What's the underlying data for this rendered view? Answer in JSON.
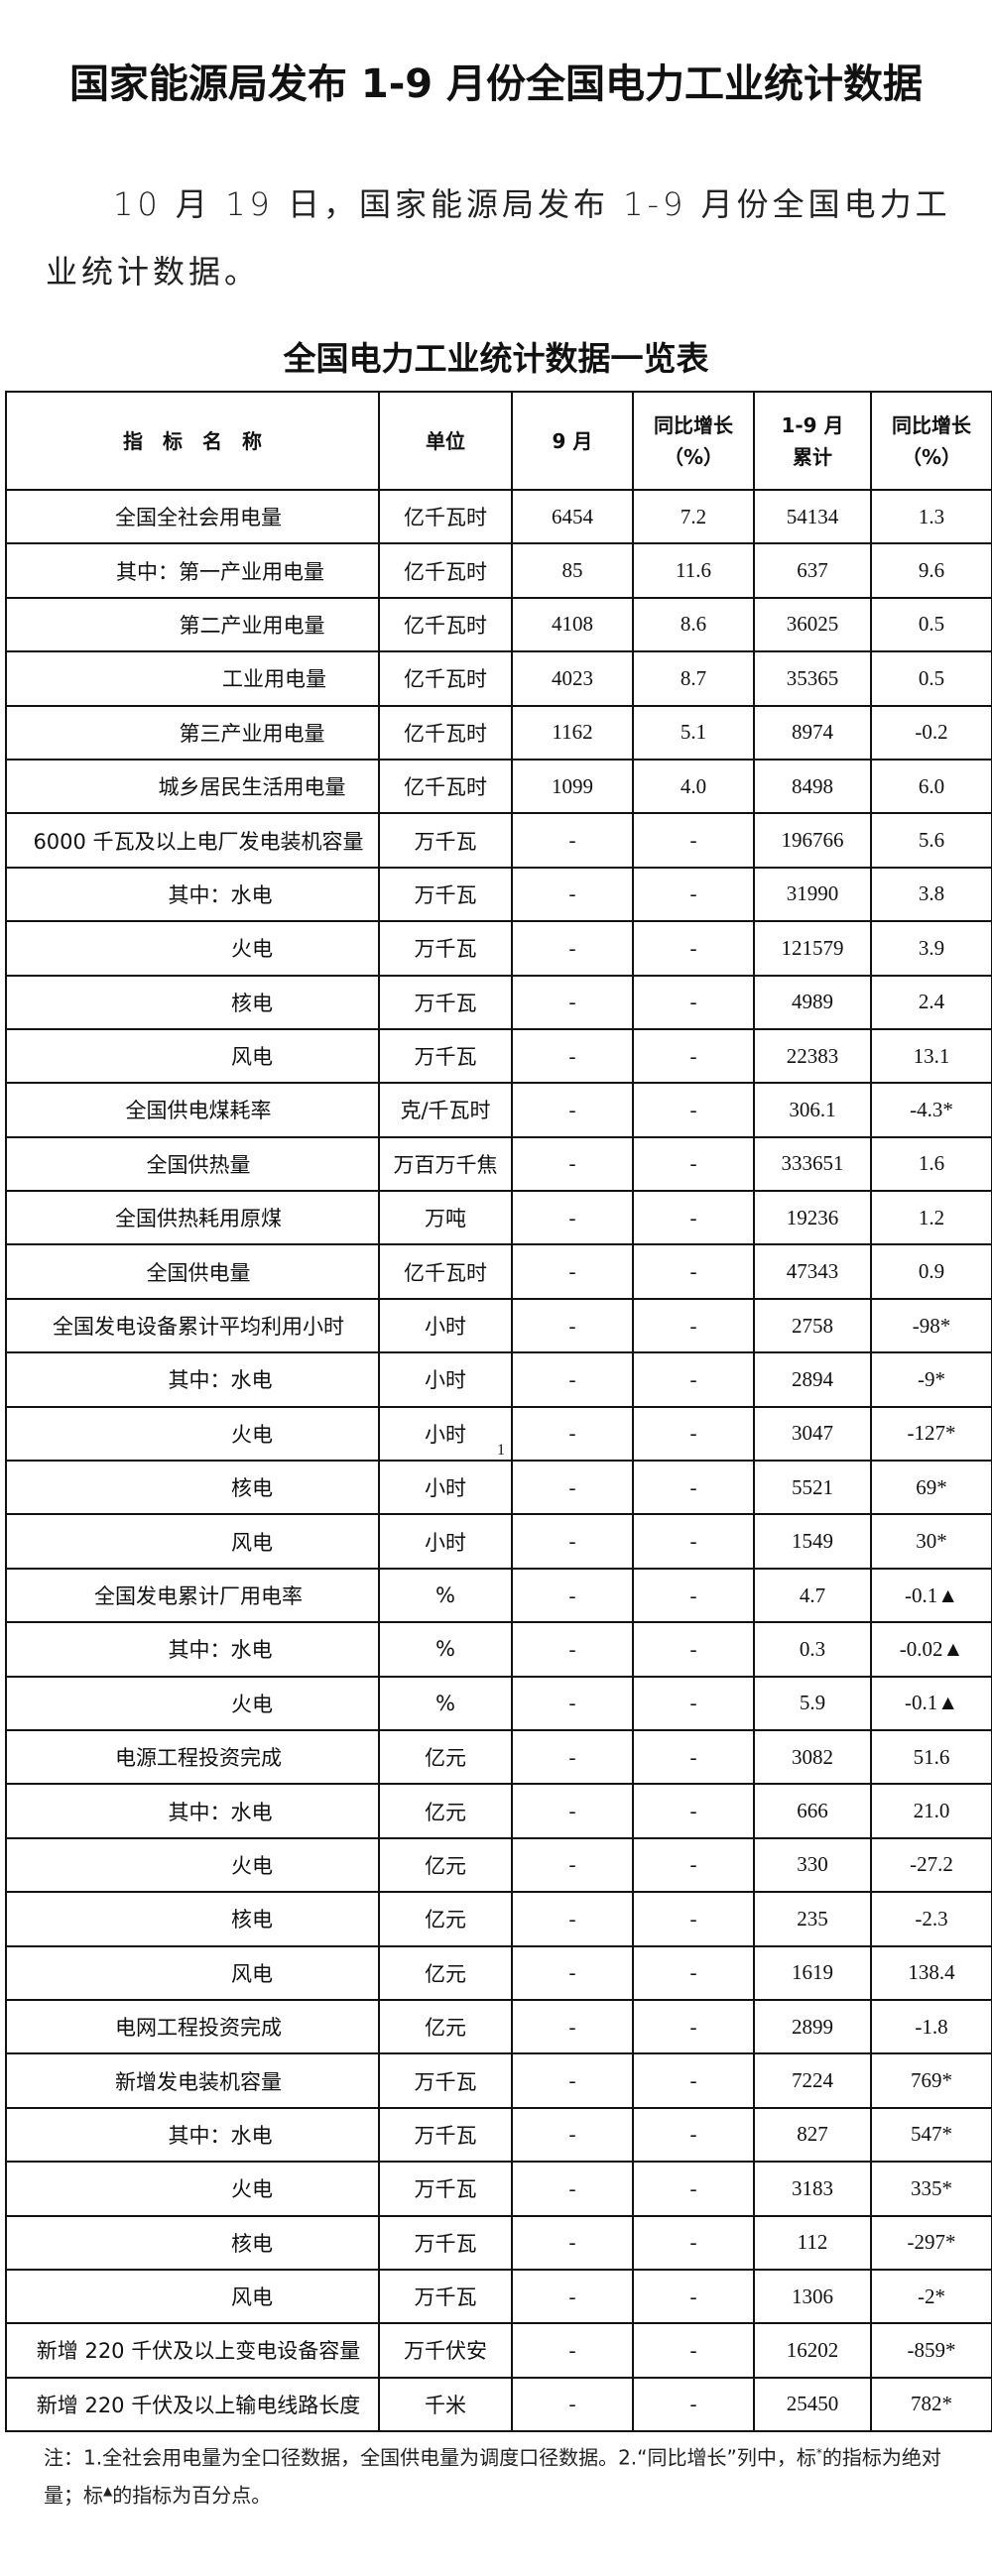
{
  "title": "国家能源局发布 1-9 月份全国电力工业统计数据",
  "paragraph": "10 月 19 日，国家能源局发布 1-9 月份全国电力工业统计数据。",
  "table_caption": "全国电力工业统计数据一览表",
  "table": {
    "headers": [
      "指　标　名　称",
      "单位",
      "9 月",
      "同比增长\n（%）",
      "1-9 月\n累计",
      "同比增长\n（%）"
    ],
    "rows": [
      {
        "name": "全国全社会用电量",
        "level": 0,
        "unit": "亿千瓦时",
        "month": "6454",
        "month_yoy": "7.2",
        "cum": "54134",
        "cum_yoy": "1.3"
      },
      {
        "name": "其中：第一产业用电量",
        "level": 1,
        "unit": "亿千瓦时",
        "month": "85",
        "month_yoy": "11.6",
        "cum": "637",
        "cum_yoy": "9.6"
      },
      {
        "name": "第二产业用电量",
        "level": 2,
        "unit": "亿千瓦时",
        "month": "4108",
        "month_yoy": "8.6",
        "cum": "36025",
        "cum_yoy": "0.5"
      },
      {
        "name": "工业用电量",
        "level": 3,
        "unit": "亿千瓦时",
        "month": "4023",
        "month_yoy": "8.7",
        "cum": "35365",
        "cum_yoy": "0.5"
      },
      {
        "name": "第三产业用电量",
        "level": 2,
        "unit": "亿千瓦时",
        "month": "1162",
        "month_yoy": "5.1",
        "cum": "8974",
        "cum_yoy": "-0.2"
      },
      {
        "name": "城乡居民生活用电量",
        "level": 2,
        "unit": "亿千瓦时",
        "month": "1099",
        "month_yoy": "4.0",
        "cum": "8498",
        "cum_yoy": "6.0"
      },
      {
        "name": "6000 千瓦及以上电厂发电装机容量",
        "level": 0,
        "unit": "万千瓦",
        "month": "-",
        "month_yoy": "-",
        "cum": "196766",
        "cum_yoy": "5.6"
      },
      {
        "name": "其中：水电",
        "level": 1,
        "unit": "万千瓦",
        "month": "-",
        "month_yoy": "-",
        "cum": "31990",
        "cum_yoy": "3.8"
      },
      {
        "name": "火电",
        "level": 2,
        "unit": "万千瓦",
        "month": "-",
        "month_yoy": "-",
        "cum": "121579",
        "cum_yoy": "3.9"
      },
      {
        "name": "核电",
        "level": 2,
        "unit": "万千瓦",
        "month": "-",
        "month_yoy": "-",
        "cum": "4989",
        "cum_yoy": "2.4"
      },
      {
        "name": "风电",
        "level": 2,
        "unit": "万千瓦",
        "month": "-",
        "month_yoy": "-",
        "cum": "22383",
        "cum_yoy": "13.1"
      },
      {
        "name": "全国供电煤耗率",
        "level": 0,
        "unit": "克/千瓦时",
        "month": "-",
        "month_yoy": "-",
        "cum": "306.1",
        "cum_yoy": "-4.3*"
      },
      {
        "name": "全国供热量",
        "level": 0,
        "unit": "万百万千焦",
        "month": "-",
        "month_yoy": "-",
        "cum": "333651",
        "cum_yoy": "1.6"
      },
      {
        "name": "全国供热耗用原煤",
        "level": 0,
        "unit": "万吨",
        "month": "-",
        "month_yoy": "-",
        "cum": "19236",
        "cum_yoy": "1.2"
      },
      {
        "name": "全国供电量",
        "level": 0,
        "unit": "亿千瓦时",
        "month": "-",
        "month_yoy": "-",
        "cum": "47343",
        "cum_yoy": "0.9"
      },
      {
        "name": "全国发电设备累计平均利用小时",
        "level": 0,
        "unit": "小时",
        "month": "-",
        "month_yoy": "-",
        "cum": "2758",
        "cum_yoy": "-98*"
      },
      {
        "name": "其中：水电",
        "level": 1,
        "unit": "小时",
        "month": "-",
        "month_yoy": "-",
        "cum": "2894",
        "cum_yoy": "-9*"
      },
      {
        "name": "火电",
        "level": 2,
        "unit": "小时",
        "month": "-",
        "month_yoy": "-",
        "cum": "3047",
        "cum_yoy": "-127*",
        "page_marker": "1"
      },
      {
        "name": "核电",
        "level": 2,
        "unit": "小时",
        "month": "-",
        "month_yoy": "-",
        "cum": "5521",
        "cum_yoy": "69*"
      },
      {
        "name": "风电",
        "level": 2,
        "unit": "小时",
        "month": "-",
        "month_yoy": "-",
        "cum": "1549",
        "cum_yoy": "30*"
      },
      {
        "name": "全国发电累计厂用电率",
        "level": 0,
        "unit": "%",
        "month": "-",
        "month_yoy": "-",
        "cum": "4.7",
        "cum_yoy": "-0.1▲"
      },
      {
        "name": "其中：水电",
        "level": 1,
        "unit": "%",
        "month": "-",
        "month_yoy": "-",
        "cum": "0.3",
        "cum_yoy": "-0.02▲"
      },
      {
        "name": "火电",
        "level": 2,
        "unit": "%",
        "month": "-",
        "month_yoy": "-",
        "cum": "5.9",
        "cum_yoy": "-0.1▲"
      },
      {
        "name": "电源工程投资完成",
        "level": 0,
        "unit": "亿元",
        "month": "-",
        "month_yoy": "-",
        "cum": "3082",
        "cum_yoy": "51.6"
      },
      {
        "name": "其中：水电",
        "level": 1,
        "unit": "亿元",
        "month": "-",
        "month_yoy": "-",
        "cum": "666",
        "cum_yoy": "21.0"
      },
      {
        "name": "火电",
        "level": 2,
        "unit": "亿元",
        "month": "-",
        "month_yoy": "-",
        "cum": "330",
        "cum_yoy": "-27.2"
      },
      {
        "name": "核电",
        "level": 2,
        "unit": "亿元",
        "month": "-",
        "month_yoy": "-",
        "cum": "235",
        "cum_yoy": "-2.3"
      },
      {
        "name": "风电",
        "level": 2,
        "unit": "亿元",
        "month": "-",
        "month_yoy": "-",
        "cum": "1619",
        "cum_yoy": "138.4"
      },
      {
        "name": "电网工程投资完成",
        "level": 0,
        "unit": "亿元",
        "month": "-",
        "month_yoy": "-",
        "cum": "2899",
        "cum_yoy": "-1.8"
      },
      {
        "name": "新增发电装机容量",
        "level": 0,
        "unit": "万千瓦",
        "month": "-",
        "month_yoy": "-",
        "cum": "7224",
        "cum_yoy": "769*"
      },
      {
        "name": "其中：水电",
        "level": 1,
        "unit": "万千瓦",
        "month": "-",
        "month_yoy": "-",
        "cum": "827",
        "cum_yoy": "547*"
      },
      {
        "name": "火电",
        "level": 2,
        "unit": "万千瓦",
        "month": "-",
        "month_yoy": "-",
        "cum": "3183",
        "cum_yoy": "335*"
      },
      {
        "name": "核电",
        "level": 2,
        "unit": "万千瓦",
        "month": "-",
        "month_yoy": "-",
        "cum": "112",
        "cum_yoy": "-297*"
      },
      {
        "name": "风电",
        "level": 2,
        "unit": "万千瓦",
        "month": "-",
        "month_yoy": "-",
        "cum": "1306",
        "cum_yoy": "-2*"
      },
      {
        "name": "新增 220 千伏及以上变电设备容量",
        "level": 0,
        "unit": "万千伏安",
        "month": "-",
        "month_yoy": "-",
        "cum": "16202",
        "cum_yoy": "-859*"
      },
      {
        "name": "新增 220 千伏及以上输电线路长度",
        "level": 0,
        "unit": "千米",
        "month": "-",
        "month_yoy": "-",
        "cum": "25450",
        "cum_yoy": "782*"
      }
    ]
  },
  "note": {
    "part1": "注：1.全社会用电量为全口径数据，全国供电量为调度口径数据。2.“同比增长”列中，标",
    "star": "*",
    "part2": "的指标为绝对量；标",
    "triangle": "▲",
    "part3": "的指标为百分点。"
  }
}
